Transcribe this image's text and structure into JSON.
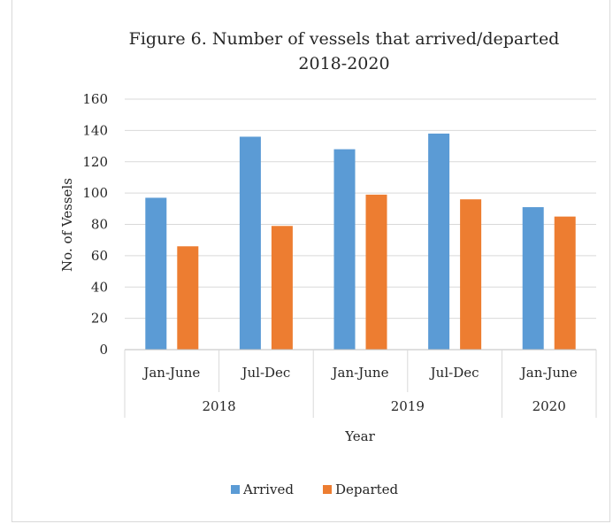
{
  "chart_data": {
    "type": "bar",
    "title_line1": "Figure 6. Number of vessels that arrived/departed",
    "title_line2": "2018-2020",
    "ylabel": "No. of Vessels",
    "xlabel": "Year",
    "ylim": [
      0,
      160
    ],
    "y_ticks": [
      0,
      20,
      40,
      60,
      80,
      100,
      120,
      140,
      160
    ],
    "grid": true,
    "legend_position": "bottom",
    "categories": [
      "Jan-June",
      "Jul-Dec",
      "Jan-June",
      "Jul-Dec",
      "Jan-June"
    ],
    "groups": [
      {
        "label": "2018",
        "count": 2
      },
      {
        "label": "2019",
        "count": 2
      },
      {
        "label": "2020",
        "count": 1
      }
    ],
    "series": [
      {
        "name": "Arrived",
        "color": "#5b9bd5",
        "values": [
          97,
          136,
          128,
          138,
          91
        ]
      },
      {
        "name": "Departed",
        "color": "#ed7d31",
        "values": [
          66,
          79,
          99,
          96,
          85
        ]
      }
    ]
  }
}
